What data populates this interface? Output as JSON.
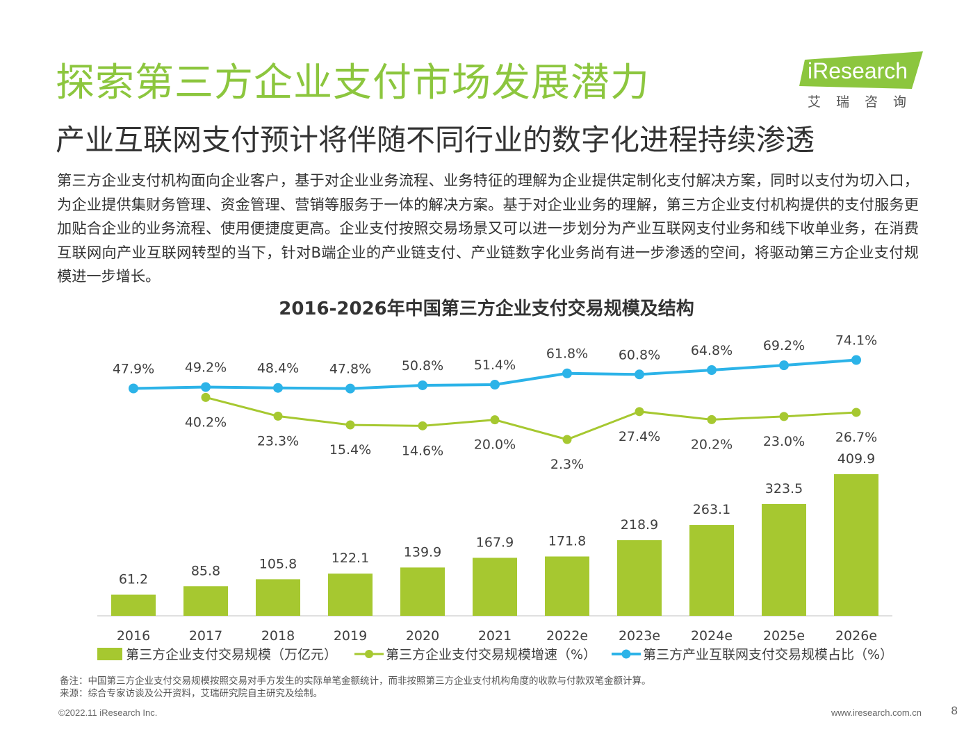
{
  "header": {
    "title": "探索第三方企业支付市场发展潜力",
    "subtitle": "产业互联网支付预计将伴随不同行业的数字化进程持续渗透"
  },
  "logo": {
    "text": "iResearch",
    "sub": "艾瑞咨询"
  },
  "body_text": "第三方企业支付机构面向企业客户，基于对企业业务流程、业务特征的理解为企业提供定制化支付解决方案，同时以支付为切入口，为企业提供集财务管理、资金管理、营销等服务于一体的解决方案。基于对企业业务的理解，第三方企业支付机构提供的支付服务更加贴合企业的业务流程、使用便捷度更高。企业支付按照交易场景又可以进一步划分为产业互联网支付业务和线下收单业务，在消费互联网向产业互联网转型的当下，针对B端企业的产业链支付、产业链数字化业务尚有进一步渗透的空间，将驱动第三方企业支付规模进一步增长。",
  "chart_data": {
    "type": "bar",
    "title": "2016-2026年中国第三方企业支付交易规模及结构",
    "categories": [
      "2016",
      "2017",
      "2018",
      "2019",
      "2020",
      "2021",
      "2022e",
      "2023e",
      "2024e",
      "2025e",
      "2026e"
    ],
    "series": [
      {
        "name": "第三方企业支付交易规模（万亿元）",
        "type": "bar",
        "color": "#a6c830",
        "values": [
          61.2,
          85.8,
          105.8,
          122.1,
          139.9,
          167.9,
          171.8,
          218.9,
          263.1,
          323.5,
          409.9
        ],
        "labels": [
          "61.2",
          "85.8",
          "105.8",
          "122.1",
          "139.9",
          "167.9",
          "171.8",
          "218.9",
          "263.1",
          "323.5",
          "409.9"
        ]
      },
      {
        "name": "第三方企业支付交易规模增速（%）",
        "type": "line",
        "color": "#a6c830",
        "values": [
          null,
          40.2,
          23.3,
          15.4,
          14.6,
          20.0,
          2.3,
          27.4,
          20.2,
          23.0,
          26.7
        ],
        "labels": [
          "",
          "40.2%",
          "23.3%",
          "15.4%",
          "14.6%",
          "20.0%",
          "2.3%",
          "27.4%",
          "20.2%",
          "23.0%",
          "26.7%"
        ]
      },
      {
        "name": "第三方产业互联网支付交易规模占比（%）",
        "type": "line",
        "color": "#2cb3e8",
        "values": [
          47.9,
          49.2,
          48.4,
          47.8,
          50.8,
          51.4,
          61.8,
          60.8,
          64.8,
          69.2,
          74.1
        ],
        "labels": [
          "47.9%",
          "49.2%",
          "48.4%",
          "47.8%",
          "50.8%",
          "51.4%",
          "61.8%",
          "60.8%",
          "64.8%",
          "69.2%",
          "74.1%"
        ]
      }
    ],
    "legend_position": "bottom",
    "grid": false
  },
  "note": {
    "line1": "备注：中国第三方企业支付交易规模按照交易对手方发生的实际单笔金额统计，而非按照第三方企业支付机构角度的收款与付款双笔金额计算。",
    "line2": "来源：综合专家访谈及公开资料，艾瑞研究院自主研究及绘制。"
  },
  "footer": {
    "copyright": "©2022.11 iResearch Inc.",
    "website": "www.iresearch.com.cn",
    "page": "8"
  }
}
